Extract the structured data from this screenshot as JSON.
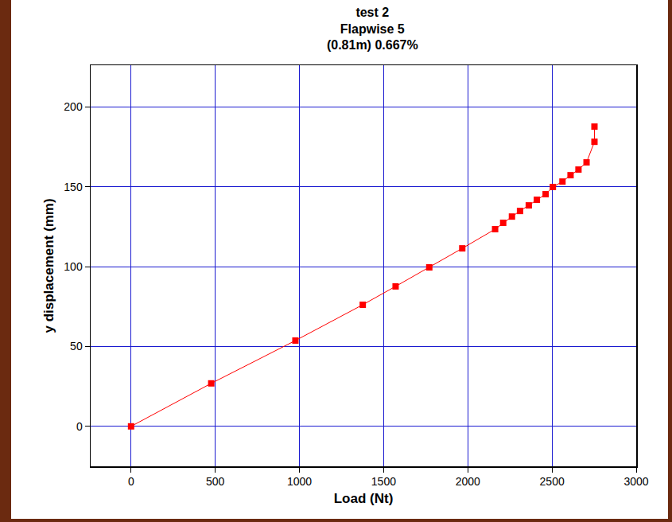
{
  "chart_data": {
    "type": "line",
    "title": [
      "test 2",
      "Flapwise 5",
      "(0.81m) 0.667%"
    ],
    "x_label": "Load (Nt)",
    "y_label": "y displacement (mm)",
    "x": [
      0,
      476,
      976,
      1376,
      1571,
      1771,
      1967,
      2162,
      2210,
      2262,
      2310,
      2362,
      2410,
      2462,
      2505,
      2562,
      2610,
      2657,
      2705,
      2752,
      2752
    ],
    "values": [
      0,
      26.9,
      53.7,
      76.1,
      87.6,
      99.5,
      111.4,
      123.4,
      127.4,
      131.3,
      134.8,
      138.3,
      141.8,
      145.3,
      149.8,
      153.2,
      157.2,
      160.7,
      165.2,
      178.1,
      187.6
    ],
    "color": "#ff0000",
    "marker": "square",
    "line_style": "solid",
    "xlim": [
      -240,
      3000
    ],
    "ylim": [
      -25,
      226
    ],
    "xticks": [
      0,
      500,
      1000,
      1500,
      2000,
      2500,
      3000
    ],
    "yticks": [
      0,
      50,
      100,
      150,
      200
    ],
    "grid": true
  }
}
